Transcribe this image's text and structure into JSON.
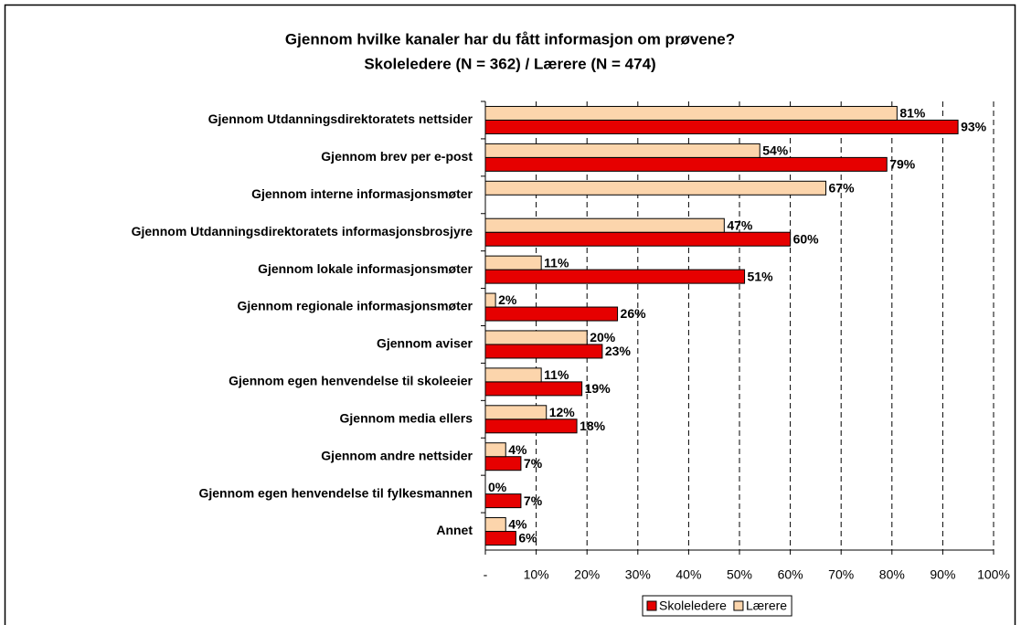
{
  "chart_data": {
    "type": "bar",
    "orientation": "horizontal",
    "title": "Gjennom hvilke kanaler har du fått informasjon om prøvene?",
    "subtitle": "Skoleledere (N = 362) / Lærere (N = 474)",
    "categories": [
      "Gjennom Utdanningsdirektoratets nettsider",
      "Gjennom brev per e-post",
      "Gjennom interne informasjonsmøter",
      "Gjennom Utdanningsdirektoratets informasjonsbrosjyre",
      "Gjennom lokale informasjonsmøter",
      "Gjennom regionale informasjonsmøter",
      "Gjennom aviser",
      "Gjennom egen henvendelse til skoleeier",
      "Gjennom media ellers",
      "Gjennom andre nettsider",
      "Gjennom egen henvendelse til fylkesmannen",
      "Annet"
    ],
    "series": [
      {
        "name": "Skoleledere",
        "color": "#e60000",
        "values": [
          93,
          79,
          null,
          60,
          51,
          26,
          23,
          19,
          18,
          7,
          7,
          6
        ],
        "value_labels": [
          "93%",
          "79%",
          null,
          "60%",
          "51%",
          "26%",
          "23%",
          "19%",
          "18%",
          "7%",
          "7%",
          "6%"
        ]
      },
      {
        "name": "Lærere",
        "color": "#fcd5ac",
        "values": [
          81,
          54,
          67,
          47,
          11,
          2,
          20,
          11,
          12,
          4,
          0,
          4
        ],
        "value_labels": [
          "81%",
          "54%",
          "67%",
          "47%",
          "11%",
          "2%",
          "20%",
          "11%",
          "12%",
          "4%",
          "0%",
          "4%"
        ]
      }
    ],
    "xlim": [
      0,
      100
    ],
    "xticks": [
      {
        "value": 0,
        "label": "-"
      },
      {
        "value": 10,
        "label": "10%"
      },
      {
        "value": 20,
        "label": "20%"
      },
      {
        "value": 30,
        "label": "30%"
      },
      {
        "value": 40,
        "label": "40%"
      },
      {
        "value": 50,
        "label": "50%"
      },
      {
        "value": 60,
        "label": "60%"
      },
      {
        "value": 70,
        "label": "70%"
      },
      {
        "value": 80,
        "label": "80%"
      },
      {
        "value": 90,
        "label": "90%"
      },
      {
        "value": 100,
        "label": "100%"
      }
    ],
    "grid": true,
    "legend": "bottom"
  }
}
